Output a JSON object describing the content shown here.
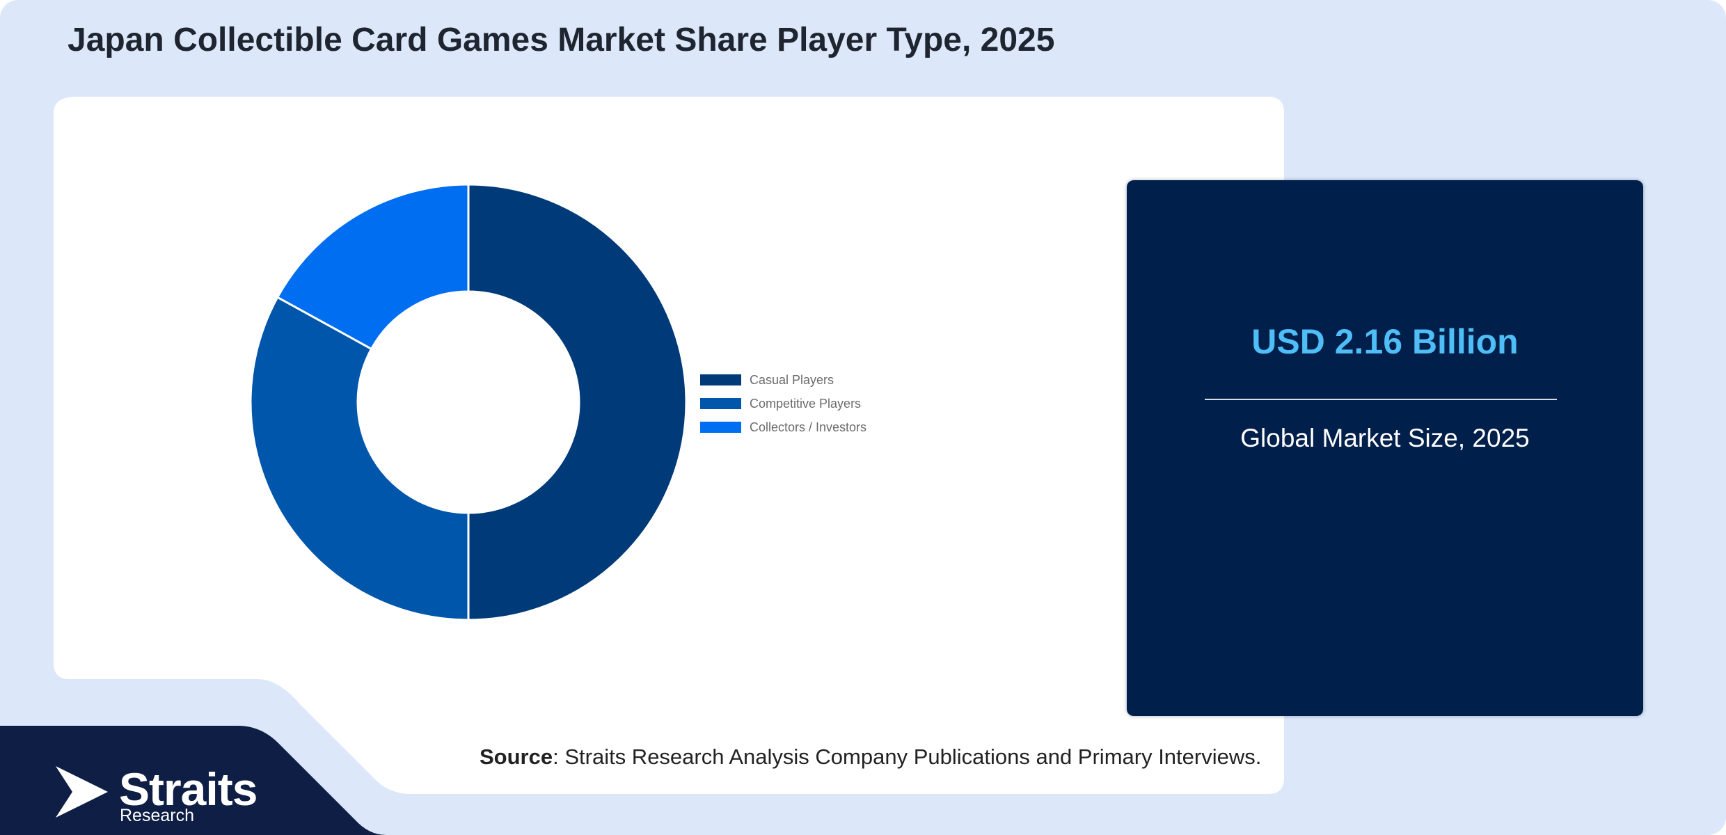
{
  "header": {
    "title": "Japan Collectible Card Games Market Share Player Type, 2025"
  },
  "chart_data": {
    "type": "pie",
    "variant": "donut",
    "title": "",
    "series": [
      {
        "name": "Casual Players",
        "value": 50,
        "color": "#003a78"
      },
      {
        "name": "Competitive Players",
        "value": 33,
        "color": "#0056aa"
      },
      {
        "name": "Collectors / Investors",
        "value": 17,
        "color": "#006ef0"
      }
    ],
    "legend_position": "right"
  },
  "market_card": {
    "value": "USD 2.16 Billion",
    "caption": "Global Market Size, 2025"
  },
  "source": {
    "label": "Source",
    "text": ": Straits Research Analysis Company Publications and Primary Interviews."
  },
  "logo": {
    "name": "Straits",
    "sub": "Research"
  },
  "colors": {
    "page_background": "#dce8f9",
    "panel": "#ffffff",
    "card": "#001f4a",
    "accent_value": "#4fbdf6",
    "footer": "#0f1e45"
  }
}
